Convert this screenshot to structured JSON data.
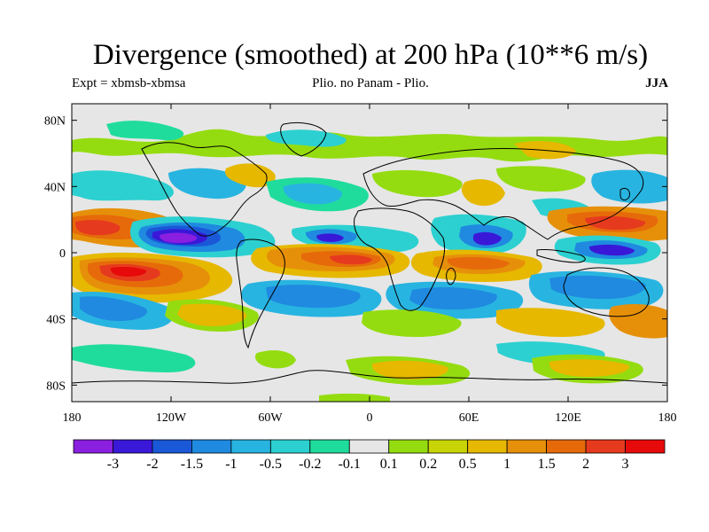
{
  "title": "Divergence (smoothed) at 200 hPa (10**6 m/s)",
  "subtitle_left": "Expt = xbmsb-xbmsa",
  "subtitle_center": "Plio. no Panam - Plio.",
  "subtitle_right": "JJA",
  "axes": {
    "lon_range": [
      -180,
      180
    ],
    "lat_range": [
      -90,
      90
    ],
    "x_ticks": [
      {
        "value": -180,
        "label": "180"
      },
      {
        "value": -120,
        "label": "120W"
      },
      {
        "value": -60,
        "label": "60W"
      },
      {
        "value": 0,
        "label": "0"
      },
      {
        "value": 60,
        "label": "60E"
      },
      {
        "value": 120,
        "label": "120E"
      },
      {
        "value": 180,
        "label": "180"
      }
    ],
    "y_ticks": [
      {
        "value": 80,
        "label": "80N"
      },
      {
        "value": 40,
        "label": "40N"
      },
      {
        "value": 0,
        "label": "0"
      },
      {
        "value": -40,
        "label": "40S"
      },
      {
        "value": -80,
        "label": "80S"
      }
    ]
  },
  "colorbar": {
    "colors": [
      "#8a1fe0",
      "#3a18d8",
      "#1a58d8",
      "#1f8ae0",
      "#28b4e0",
      "#2cd0d0",
      "#20dc9c",
      "#e6e6e6",
      "#94dc10",
      "#c8d406",
      "#e6b800",
      "#e6900a",
      "#e66a0a",
      "#e63a1e",
      "#e60a0a"
    ],
    "labels": [
      "-3",
      "-2",
      "-1.5",
      "-1",
      "-0.5",
      "-0.2",
      "-0.1",
      "0.1",
      "0.2",
      "0.5",
      "1",
      "1.5",
      "2",
      "3"
    ]
  },
  "chart_data": {
    "type": "heatmap",
    "title": "Divergence (smoothed) at 200 hPa (10**6 m/s)",
    "projection": "cylindrical equidistant",
    "x_range": [
      -180,
      180
    ],
    "y_range": [
      -90,
      90
    ],
    "levels": [
      -3,
      -2,
      -1.5,
      -1,
      -0.5,
      -0.2,
      -0.1,
      0.1,
      0.2,
      0.5,
      1,
      1.5,
      2,
      3
    ],
    "regions": [
      {
        "lon": [
          -180,
          -125
        ],
        "lat": [
          8,
          25
        ],
        "class": 14
      },
      {
        "lon": [
          -150,
          -130
        ],
        "lat": [
          12,
          20
        ],
        "class": 14
      },
      {
        "lon": [
          -140,
          -100
        ],
        "lat": [
          -28,
          -5
        ],
        "class": 13
      },
      {
        "lon": [
          -130,
          -110
        ],
        "lat": [
          -22,
          -12
        ],
        "class": 14
      },
      {
        "lon": [
          -140,
          -95
        ],
        "lat": [
          3,
          13
        ],
        "class": 0
      },
      {
        "lon": [
          -135,
          -105
        ],
        "lat": [
          5,
          10
        ],
        "class": 0
      },
      {
        "lon": [
          -10,
          5
        ],
        "lat": [
          -7,
          0
        ],
        "class": 14
      },
      {
        "lon": [
          -25,
          0
        ],
        "lat": [
          -8,
          -2
        ],
        "class": 13
      },
      {
        "lon": [
          -25,
          -10
        ],
        "lat": [
          8,
          12
        ],
        "class": 1
      },
      {
        "lon": [
          60,
          75
        ],
        "lat": [
          2,
          10
        ],
        "class": 1
      },
      {
        "lon": [
          130,
          160
        ],
        "lat": [
          -2,
          5
        ],
        "class": 1
      },
      {
        "lon": [
          120,
          180
        ],
        "lat": [
          8,
          22
        ],
        "class": 13
      }
    ]
  }
}
